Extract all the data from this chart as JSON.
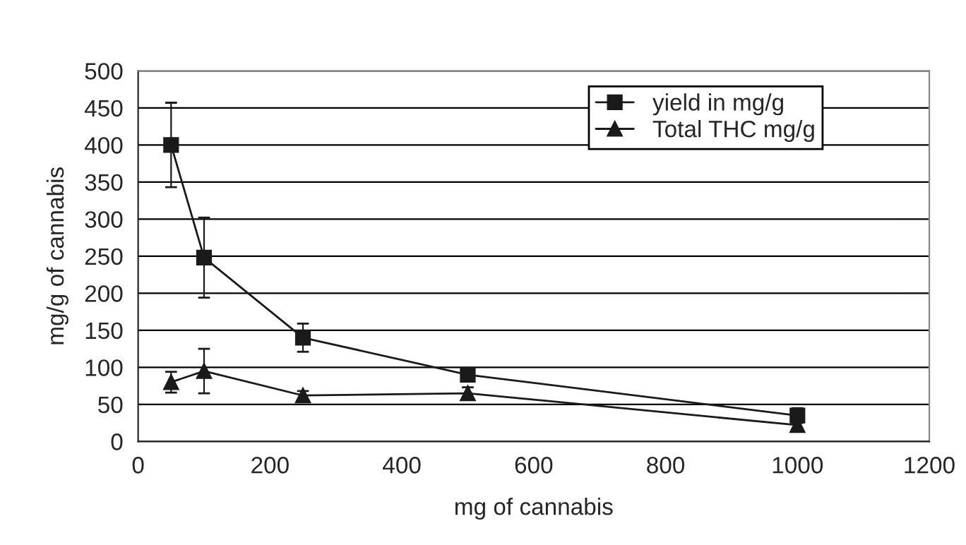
{
  "chart_data": {
    "type": "line",
    "xlabel": "mg of cannabis",
    "ylabel": "mg/g of cannabis",
    "x": [
      50,
      100,
      250,
      500,
      1000
    ],
    "series": [
      {
        "name": "yield in mg/g",
        "color": "#1a1a1a",
        "marker": "square",
        "values": [
          400,
          248,
          140,
          90,
          35
        ],
        "errors": [
          57,
          54,
          19,
          8,
          10
        ]
      },
      {
        "name": "Total THC mg/g",
        "color": "#1a1a1a",
        "marker": "triangle",
        "values": [
          80,
          95,
          62,
          65,
          22
        ],
        "errors": [
          14,
          30,
          6,
          8,
          5
        ]
      }
    ],
    "xlim": [
      0,
      1200
    ],
    "xticks": [
      0,
      200,
      400,
      600,
      800,
      1000,
      1200
    ],
    "ylim": [
      0,
      500
    ],
    "yticks": [
      0,
      50,
      100,
      150,
      200,
      250,
      300,
      350,
      400,
      450,
      500
    ],
    "grid": "y",
    "legend": "top right",
    "line_style": "solid"
  }
}
